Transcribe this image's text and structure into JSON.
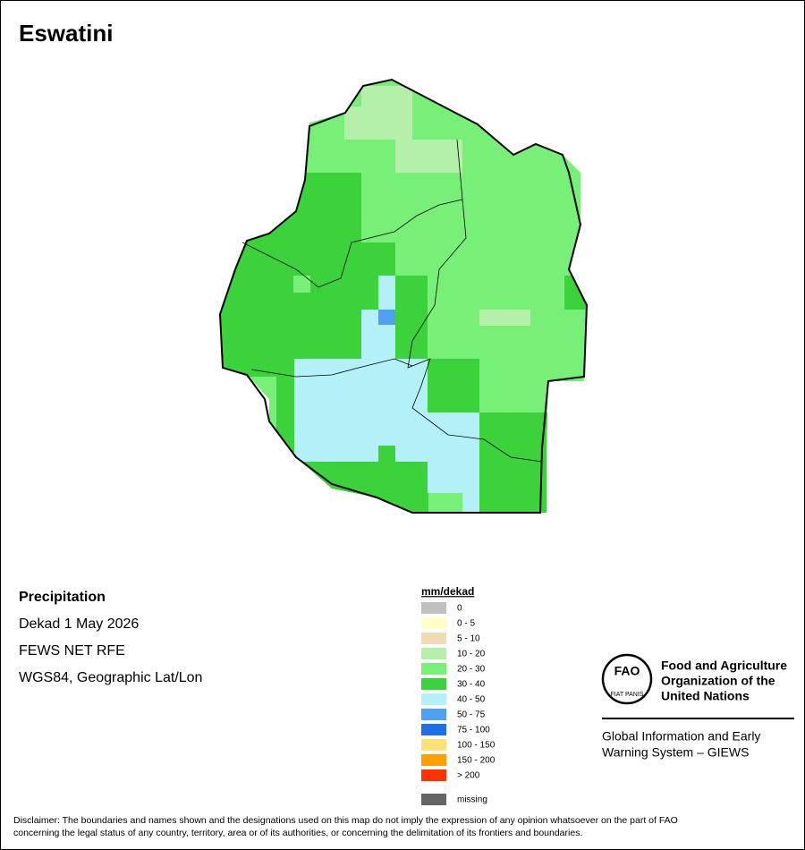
{
  "title": "Eswatini",
  "info": {
    "heading": "Precipitation",
    "lines": [
      "Dekad 1 May 2026",
      "FEWS NET RFE",
      "WGS84, Geographic Lat/Lon"
    ]
  },
  "legend": {
    "title": "mm/dekad",
    "items": [
      {
        "label": "0",
        "color": "#c0c0c0"
      },
      {
        "label": "0 - 5",
        "color": "#ffffc8"
      },
      {
        "label": "5 - 10",
        "color": "#f0dcb4"
      },
      {
        "label": "10 - 20",
        "color": "#b4f0aa"
      },
      {
        "label": "20 - 30",
        "color": "#78f078"
      },
      {
        "label": "30 - 40",
        "color": "#3cd23c"
      },
      {
        "label": "40 - 50",
        "color": "#b4f0f8"
      },
      {
        "label": "50 - 75",
        "color": "#50a0f0"
      },
      {
        "label": "75 - 100",
        "color": "#1e6ee6"
      },
      {
        "label": "100 - 150",
        "color": "#ffe178"
      },
      {
        "label": "150 - 200",
        "color": "#ffa000"
      },
      {
        "label": "> 200",
        "color": "#ff3200"
      }
    ],
    "missing": {
      "label": "missing",
      "color": "#646464"
    }
  },
  "logo": {
    "emblem": "FAO",
    "motto": "FIAT PANIS",
    "org_lines": [
      "Food and Agriculture",
      "Organization of the",
      "United Nations"
    ],
    "giews_lines": [
      "Global Information and Early",
      "Warning System – GIEWS"
    ]
  },
  "disclaimer": [
    "Disclaimer: The boundaries and names shown and the designations used on this map do not imply the expression of any opinion whatsoever on the part of FAO",
    "concerning the legal status of any country, territory, area or of its authorities, or concerning the delimitation of its frontiers and boundaries."
  ]
}
